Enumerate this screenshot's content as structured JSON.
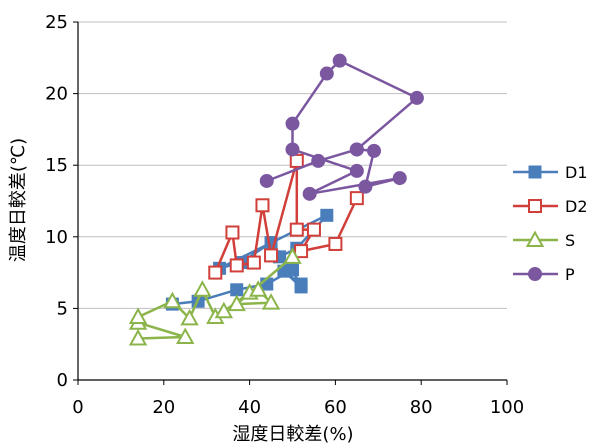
{
  "chart_data": {
    "type": "scatter",
    "xlabel": "湿度日較差(%)",
    "ylabel": "温度日較差(℃)",
    "xlim": [
      0,
      100
    ],
    "ylim": [
      0,
      25
    ],
    "xticks": [
      0,
      20,
      40,
      60,
      80,
      100
    ],
    "yticks": [
      0,
      5,
      10,
      15,
      20,
      25
    ],
    "grid": "horizontal",
    "legend_position": "right",
    "series": [
      {
        "name": "D1",
        "color": "#4a7ebb",
        "marker": "filled-square",
        "points": [
          [
            22,
            5.3
          ],
          [
            28,
            5.5
          ],
          [
            37,
            6.3
          ],
          [
            44,
            6.7
          ],
          [
            50,
            7.7
          ],
          [
            52,
            6.5
          ],
          [
            48,
            7.6
          ],
          [
            52,
            6.7
          ],
          [
            45,
            9.6
          ],
          [
            38,
            8.2
          ],
          [
            33,
            7.8
          ],
          [
            58,
            11.5
          ],
          [
            51,
            9.2
          ],
          [
            47,
            8.6
          ]
        ]
      },
      {
        "name": "D2",
        "color": "#d13f3a",
        "marker": "open-square",
        "points": [
          [
            32,
            7.5
          ],
          [
            36,
            10.3
          ],
          [
            37,
            8.0
          ],
          [
            41,
            8.2
          ],
          [
            43,
            12.2
          ],
          [
            45,
            8.7
          ],
          [
            51,
            15.3
          ],
          [
            51,
            10.5
          ],
          [
            55,
            10.5
          ],
          [
            52,
            9.0
          ],
          [
            60,
            9.5
          ],
          [
            65,
            12.7
          ]
        ]
      },
      {
        "name": "S",
        "color": "#8bb54a",
        "marker": "open-triangle",
        "points": [
          [
            14,
            2.9
          ],
          [
            25,
            3.0
          ],
          [
            14,
            4.0
          ],
          [
            14,
            4.4
          ],
          [
            22,
            5.5
          ],
          [
            26,
            4.3
          ],
          [
            29,
            6.3
          ],
          [
            32,
            4.4
          ],
          [
            34,
            4.8
          ],
          [
            40,
            6.1
          ],
          [
            42,
            6.3
          ],
          [
            45,
            5.4
          ],
          [
            37,
            5.3
          ],
          [
            50,
            8.6
          ]
        ]
      },
      {
        "name": "P",
        "color": "#7b57a0",
        "marker": "filled-circle",
        "points": [
          [
            44,
            13.9
          ],
          [
            56,
            15.3
          ],
          [
            65,
            16.1
          ],
          [
            69,
            16.0
          ],
          [
            67,
            13.5
          ],
          [
            75,
            14.1
          ],
          [
            54,
            13.0
          ],
          [
            65,
            14.6
          ],
          [
            50,
            16.1
          ],
          [
            50,
            17.9
          ],
          [
            58,
            21.4
          ],
          [
            61,
            22.3
          ],
          [
            79,
            19.7
          ],
          [
            65,
            16.1
          ]
        ]
      }
    ]
  }
}
